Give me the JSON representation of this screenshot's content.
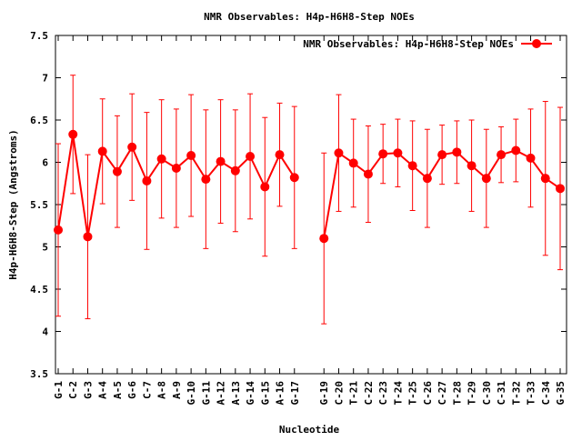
{
  "chart_data": {
    "type": "line",
    "title": "NMR Observables: H4p-H6H8-Step NOEs",
    "xlabel": "Nucleotide",
    "ylabel": "H4p-H6H8-Step (Angstroms)",
    "ylim": [
      3.5,
      7.5
    ],
    "yticks": [
      "3.5",
      "4",
      "4.5",
      "5",
      "5.5",
      "6",
      "6.5",
      "7",
      "7.5"
    ],
    "grid": false,
    "legend_position": "top-right",
    "categories": [
      "G-1",
      "C-2",
      "G-3",
      "A-4",
      "A-5",
      "G-6",
      "C-7",
      "A-8",
      "A-9",
      "G-10",
      "G-11",
      "A-12",
      "A-13",
      "G-14",
      "G-15",
      "A-16",
      "G-17",
      "G-19",
      "C-20",
      "T-21",
      "C-22",
      "C-23",
      "T-24",
      "T-25",
      "C-26",
      "C-27",
      "T-28",
      "T-29",
      "C-30",
      "C-31",
      "T-32",
      "T-33",
      "C-34",
      "G-35"
    ],
    "series": [
      {
        "name": "NMR Observables: H4p-H6H8-Step NOEs",
        "color": "#ff0000",
        "segments": [
          [
            0,
            16
          ],
          [
            17,
            33
          ]
        ],
        "values": [
          5.2,
          6.33,
          5.12,
          6.13,
          5.89,
          6.18,
          5.78,
          6.04,
          5.93,
          6.08,
          5.8,
          6.01,
          5.9,
          6.07,
          5.71,
          6.09,
          5.82,
          5.1,
          6.11,
          5.99,
          5.86,
          6.1,
          6.11,
          5.96,
          5.81,
          6.09,
          6.12,
          5.96,
          5.81,
          6.09,
          6.14,
          6.05,
          5.81,
          5.69
        ],
        "errors": [
          1.02,
          0.7,
          0.97,
          0.62,
          0.66,
          0.63,
          0.81,
          0.7,
          0.7,
          0.72,
          0.82,
          0.73,
          0.72,
          0.74,
          0.82,
          0.61,
          0.84,
          1.01,
          0.69,
          0.52,
          0.57,
          0.35,
          0.4,
          0.53,
          0.58,
          0.35,
          0.37,
          0.54,
          0.58,
          0.33,
          0.37,
          0.58,
          0.91,
          0.96
        ]
      }
    ]
  }
}
